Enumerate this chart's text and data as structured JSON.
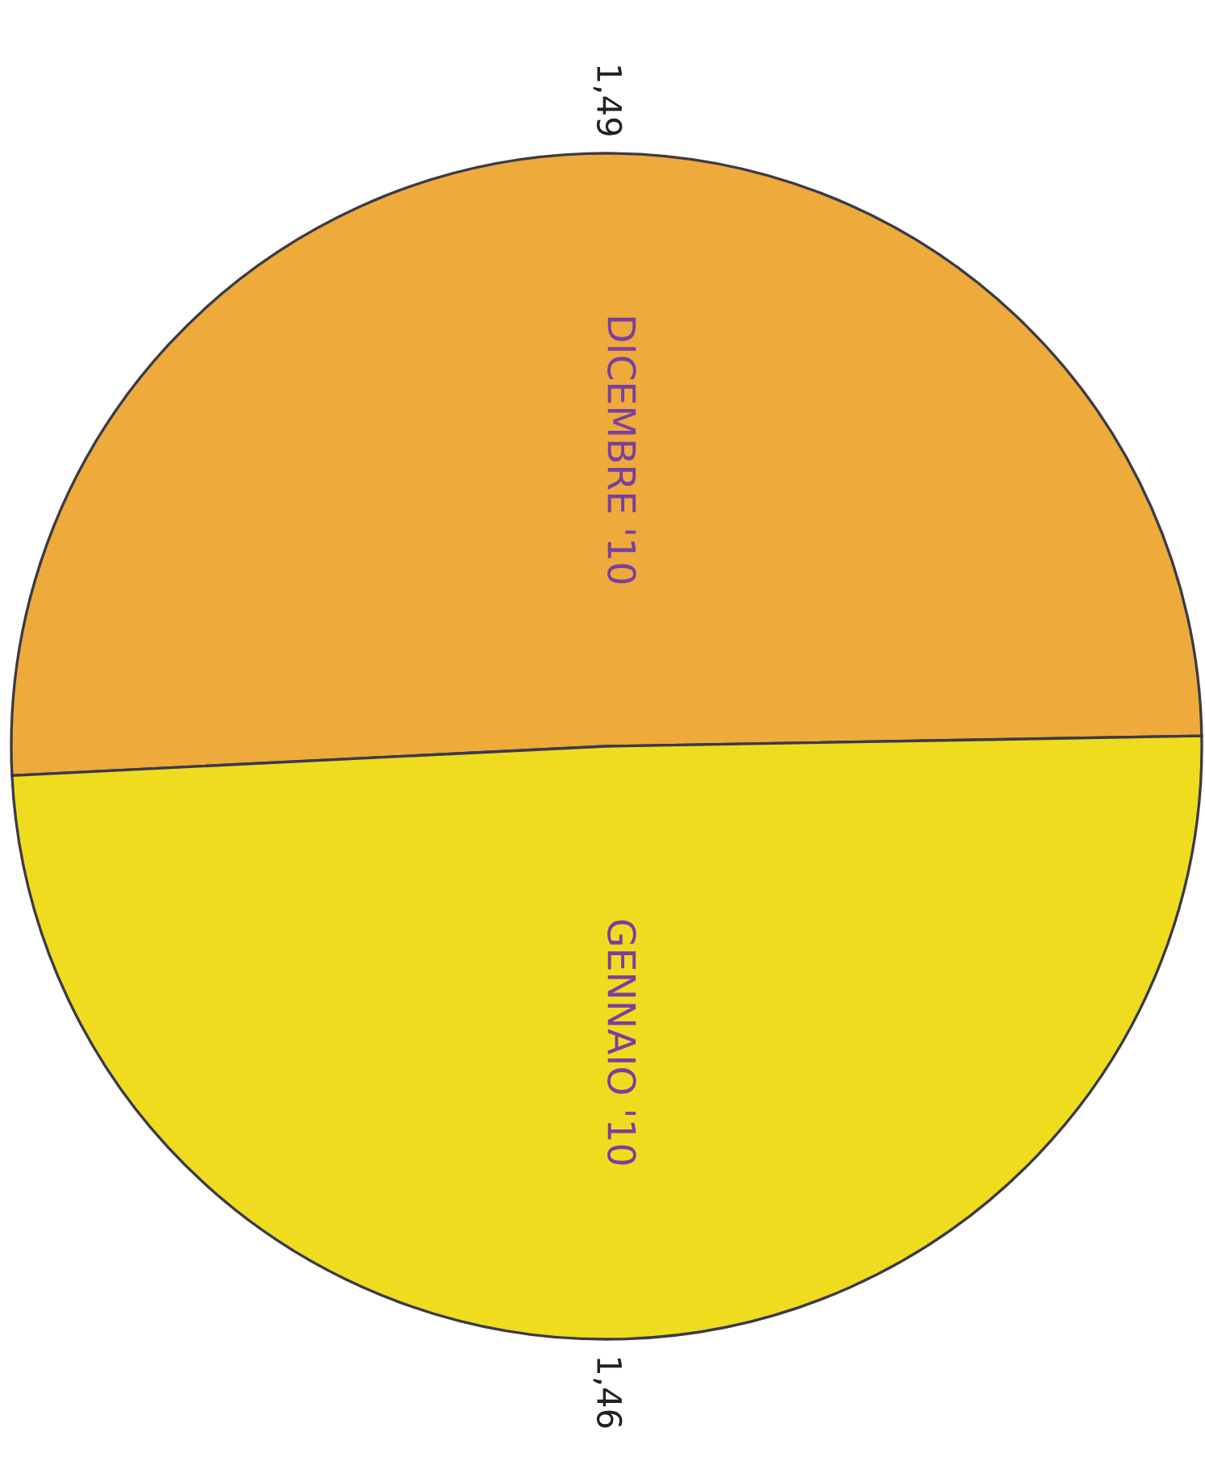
{
  "chart_data": {
    "type": "pie",
    "categories": [
      "DICEMBRE '10",
      "GENNAIO '10"
    ],
    "values": [
      1.49,
      1.46
    ],
    "colors": [
      "#eeaa3a",
      "#efdc1f"
    ],
    "value_labels": [
      "1,49",
      "1,46"
    ]
  }
}
